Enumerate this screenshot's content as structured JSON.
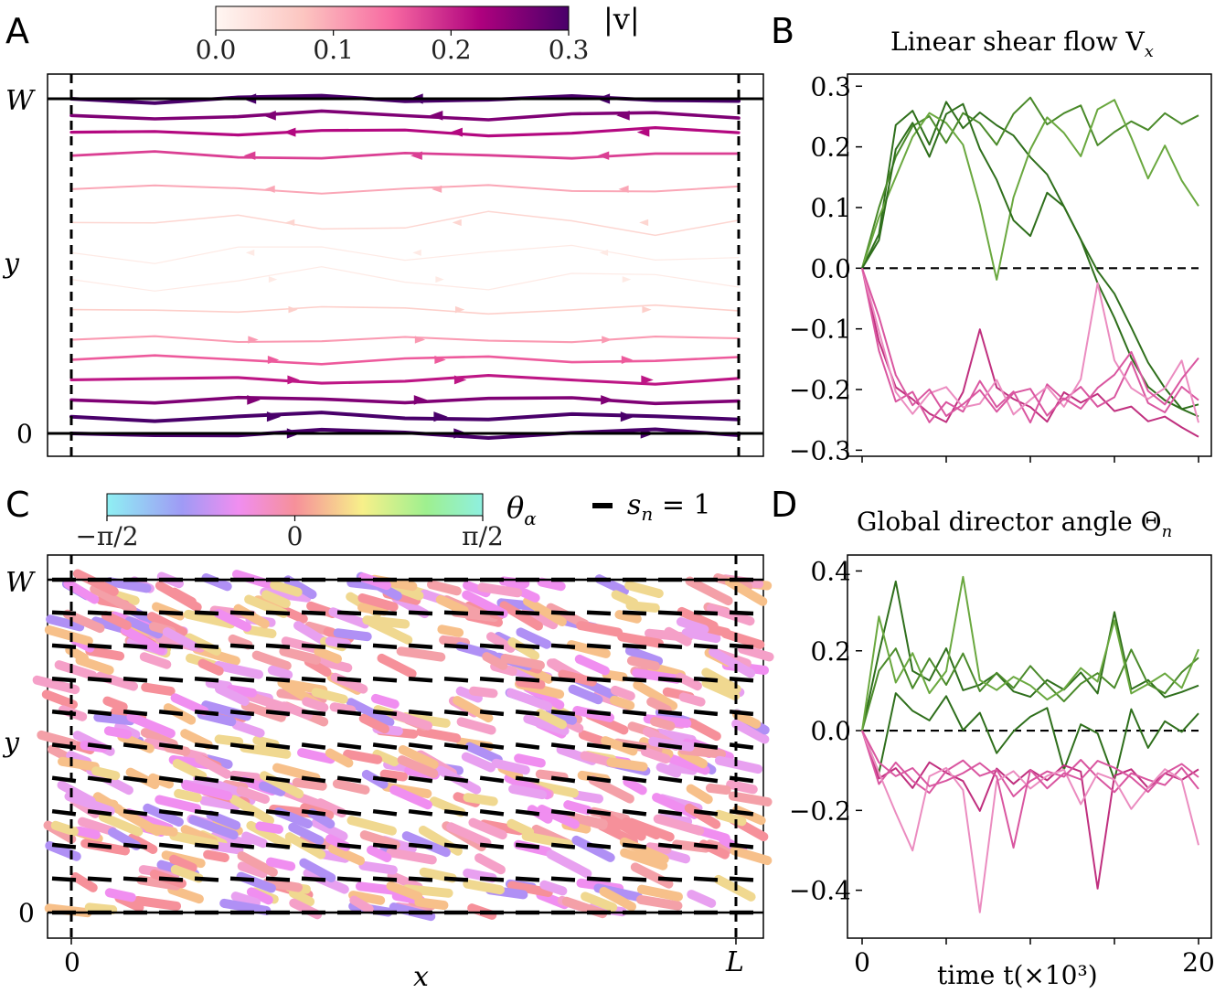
{
  "panels": {
    "A": {
      "letter": "A"
    },
    "B": {
      "letter": "B"
    },
    "C": {
      "letter": "C"
    },
    "D": {
      "letter": "D"
    }
  },
  "colors": {
    "green_dark": "#2f6f1c",
    "green_mid": "#4a8a2a",
    "green_light": "#6aa83f",
    "pink_dark": "#c0307f",
    "pink_mid": "#d956a0",
    "pink_light": "#eb8cc0",
    "rdpu_low": "#fff7f3",
    "rdpu_high": "#49006a"
  },
  "icons": [
    "flow-arrow-icon",
    "director-segment-icon"
  ],
  "chart_data": [
    {
      "id": "A",
      "type": "streamplot",
      "colorbar": {
        "label": "|v|",
        "ticks": [
          "0.0",
          "0.1",
          "0.2",
          "0.3"
        ],
        "range": [
          0,
          0.3
        ],
        "colormap": "RdPu"
      },
      "ylabel": "y",
      "yticks": [
        "0",
        "W"
      ],
      "streamlines_y": [
        1.0,
        0.95,
        0.9,
        0.83,
        0.73,
        0.63,
        0.54,
        0.46,
        0.37,
        0.28,
        0.22,
        0.16,
        0.1,
        0.05,
        0.0
      ],
      "speed_by_line": [
        0.3,
        0.26,
        0.22,
        0.18,
        0.1,
        0.05,
        0.02,
        0.02,
        0.06,
        0.11,
        0.16,
        0.21,
        0.26,
        0.3,
        0.3
      ],
      "direction_by_line": [
        -1,
        -1,
        -1,
        -1,
        -1,
        -1,
        -1,
        1,
        1,
        1,
        1,
        1,
        1,
        1,
        1
      ]
    },
    {
      "id": "B",
      "type": "line",
      "title": "Linear shear flow V",
      "title_subscript": "x",
      "xlim": [
        0,
        20
      ],
      "ylim": [
        -0.31,
        0.32
      ],
      "yticks": [
        "0.3",
        "0.2",
        "0.1",
        "0.0",
        "−0.1",
        "−0.2",
        "−0.3"
      ],
      "ytick_values": [
        0.3,
        0.2,
        0.1,
        0.0,
        -0.1,
        -0.2,
        -0.3
      ],
      "reference_line": 0.0,
      "series": [
        {
          "color": "green_dark",
          "x": [
            0,
            1,
            2,
            3,
            4,
            5,
            6,
            7,
            8,
            9,
            10,
            11,
            12,
            13,
            14,
            15,
            16,
            17,
            18,
            19,
            20
          ],
          "values": [
            0,
            0.06,
            0.24,
            0.26,
            0.2,
            0.27,
            0.23,
            0.26,
            0.24,
            0.22,
            0.18,
            0.15,
            0.1,
            0.05,
            0.0,
            -0.04,
            -0.1,
            -0.16,
            -0.2,
            -0.23,
            -0.24
          ]
        },
        {
          "color": "green_mid",
          "x": [
            0,
            1,
            2,
            3,
            4,
            5,
            6,
            7,
            8,
            9,
            10,
            11,
            12,
            13,
            14,
            15,
            16,
            17,
            18,
            19,
            20
          ],
          "values": [
            0,
            0.1,
            0.18,
            0.23,
            0.25,
            0.21,
            0.26,
            0.24,
            0.2,
            0.25,
            0.28,
            0.24,
            0.26,
            0.27,
            0.2,
            0.22,
            0.24,
            0.23,
            0.26,
            0.24,
            0.25
          ]
        },
        {
          "color": "green_light",
          "x": [
            0,
            1,
            2,
            3,
            4,
            5,
            6,
            7,
            8,
            9,
            10,
            11,
            12,
            13,
            14,
            15,
            16,
            17,
            18,
            19,
            20
          ],
          "values": [
            0,
            0.08,
            0.15,
            0.22,
            0.26,
            0.24,
            0.2,
            0.1,
            -0.02,
            0.12,
            0.2,
            0.25,
            0.22,
            0.18,
            0.26,
            0.28,
            0.22,
            0.15,
            0.2,
            0.14,
            0.1
          ]
        },
        {
          "color": "green_dark",
          "x": [
            0,
            1,
            2,
            3,
            4,
            5,
            6,
            7,
            8,
            9,
            10,
            11,
            12,
            13,
            14,
            15,
            16,
            17,
            18,
            19,
            20
          ],
          "values": [
            0,
            0.05,
            0.2,
            0.24,
            0.18,
            0.25,
            0.27,
            0.2,
            0.15,
            0.08,
            0.05,
            0.12,
            0.1,
            0.05,
            -0.02,
            -0.08,
            -0.15,
            -0.2,
            -0.22,
            -0.23,
            -0.22
          ]
        },
        {
          "color": "pink_dark",
          "x": [
            0,
            1,
            2,
            3,
            4,
            5,
            6,
            7,
            8,
            9,
            10,
            11,
            12,
            13,
            14,
            15,
            16,
            17,
            18,
            19,
            20
          ],
          "values": [
            0,
            -0.12,
            -0.2,
            -0.22,
            -0.24,
            -0.25,
            -0.2,
            -0.1,
            -0.2,
            -0.22,
            -0.23,
            -0.25,
            -0.2,
            -0.22,
            -0.21,
            -0.24,
            -0.23,
            -0.25,
            -0.24,
            -0.26,
            -0.28
          ]
        },
        {
          "color": "pink_mid",
          "x": [
            0,
            1,
            2,
            3,
            4,
            5,
            6,
            7,
            8,
            9,
            10,
            11,
            12,
            13,
            14,
            15,
            16,
            17,
            18,
            19,
            20
          ],
          "values": [
            0,
            -0.14,
            -0.22,
            -0.2,
            -0.25,
            -0.22,
            -0.24,
            -0.19,
            -0.23,
            -0.2,
            -0.25,
            -0.19,
            -0.22,
            -0.2,
            -0.23,
            -0.21,
            -0.15,
            -0.22,
            -0.24,
            -0.2,
            -0.22
          ]
        },
        {
          "color": "pink_light",
          "x": [
            0,
            1,
            2,
            3,
            4,
            5,
            6,
            7,
            8,
            9,
            10,
            11,
            12,
            13,
            14,
            15,
            16,
            17,
            18,
            19,
            20
          ],
          "values": [
            0,
            -0.1,
            -0.2,
            -0.24,
            -0.21,
            -0.2,
            -0.23,
            -0.22,
            -0.18,
            -0.24,
            -0.22,
            -0.2,
            -0.23,
            -0.18,
            -0.02,
            -0.15,
            -0.2,
            -0.22,
            -0.2,
            -0.15,
            -0.25
          ]
        },
        {
          "color": "pink_mid",
          "x": [
            0,
            1,
            2,
            3,
            4,
            5,
            6,
            7,
            8,
            9,
            10,
            11,
            12,
            13,
            14,
            15,
            16,
            17,
            18,
            19,
            20
          ],
          "values": [
            0,
            -0.08,
            -0.18,
            -0.23,
            -0.2,
            -0.24,
            -0.22,
            -0.2,
            -0.24,
            -0.21,
            -0.2,
            -0.24,
            -0.21,
            -0.23,
            -0.2,
            -0.18,
            -0.14,
            -0.2,
            -0.22,
            -0.18,
            -0.15
          ]
        }
      ]
    },
    {
      "id": "C",
      "type": "director_field",
      "colorbar": {
        "label": "θ",
        "label_subscript": "α",
        "ticks": [
          "−π/2",
          "0",
          "π/2"
        ],
        "range": [
          -1.5708,
          1.5708
        ]
      },
      "legend": {
        "label": "s",
        "label_subscript": "n",
        "label_suffix": " = 1"
      },
      "xlabel": "x",
      "ylabel": "y",
      "xticks": [
        "0",
        "L"
      ],
      "yticks": [
        "0",
        "W"
      ],
      "rows_y": [
        1.0,
        0.9,
        0.8,
        0.7,
        0.6,
        0.5,
        0.4,
        0.3,
        0.2,
        0.1,
        0.0
      ],
      "director_angle_by_row": [
        0.0,
        -0.05,
        -0.07,
        -0.08,
        -0.1,
        -0.12,
        -0.13,
        -0.12,
        -0.1,
        -0.06,
        0.0
      ]
    },
    {
      "id": "D",
      "type": "line",
      "title": "Global director angle Θ",
      "title_subscript": "n",
      "xlabel": "time t(×10³)",
      "xlim": [
        0,
        20
      ],
      "ylim": [
        -0.52,
        0.44
      ],
      "xticks": [
        "0",
        "20"
      ],
      "xtick_values": [
        0,
        20
      ],
      "yticks": [
        "0.4",
        "0.2",
        "0.0",
        "−0.2",
        "−0.4"
      ],
      "ytick_values": [
        0.4,
        0.2,
        0.0,
        -0.2,
        -0.4
      ],
      "reference_line": 0.0,
      "series": [
        {
          "color": "green_dark",
          "x": [
            0,
            1,
            2,
            3,
            4,
            5,
            6,
            7,
            8,
            9,
            10,
            11,
            12,
            13,
            14,
            15,
            16,
            17,
            18,
            19,
            20
          ],
          "values": [
            0,
            0.2,
            0.38,
            0.15,
            0.12,
            0.2,
            0.1,
            0.12,
            0.15,
            0.1,
            0.08,
            0.12,
            0.1,
            0.15,
            0.1,
            0.3,
            0.1,
            0.12,
            0.08,
            0.1,
            0.12
          ]
        },
        {
          "color": "green_mid",
          "x": [
            0,
            1,
            2,
            3,
            4,
            5,
            6,
            7,
            8,
            9,
            10,
            11,
            12,
            13,
            14,
            15,
            16,
            17,
            18,
            19,
            20
          ],
          "values": [
            0,
            0.15,
            0.2,
            0.1,
            0.18,
            0.12,
            0.2,
            0.1,
            0.14,
            0.1,
            0.16,
            0.12,
            0.08,
            0.12,
            0.14,
            0.1,
            0.2,
            0.12,
            0.1,
            0.15,
            0.18
          ]
        },
        {
          "color": "green_light",
          "x": [
            0,
            1,
            2,
            3,
            4,
            5,
            6,
            7,
            8,
            9,
            10,
            11,
            12,
            13,
            14,
            15,
            16,
            17,
            18,
            19,
            20
          ],
          "values": [
            0,
            0.28,
            0.12,
            0.2,
            0.1,
            0.15,
            0.38,
            0.12,
            0.1,
            0.14,
            0.12,
            0.08,
            0.1,
            0.15,
            0.12,
            0.28,
            0.1,
            0.12,
            0.14,
            0.1,
            0.2
          ]
        },
        {
          "color": "green_dark",
          "x": [
            0,
            1,
            2,
            3,
            4,
            5,
            6,
            7,
            8,
            9,
            10,
            11,
            12,
            13,
            14,
            15,
            16,
            17,
            18,
            19,
            20
          ],
          "values": [
            0,
            -0.1,
            0.1,
            0.05,
            0.02,
            0.08,
            0.0,
            0.05,
            -0.05,
            0.0,
            0.03,
            0.05,
            -0.1,
            0.02,
            0.0,
            -0.12,
            0.05,
            -0.05,
            0.02,
            0.0,
            0.05
          ]
        },
        {
          "color": "pink_dark",
          "x": [
            0,
            1,
            2,
            3,
            4,
            5,
            6,
            7,
            8,
            9,
            10,
            11,
            12,
            13,
            14,
            15,
            16,
            17,
            18,
            19,
            20
          ],
          "values": [
            0,
            -0.12,
            -0.1,
            -0.15,
            -0.08,
            -0.1,
            -0.12,
            -0.2,
            -0.1,
            -0.14,
            -0.1,
            -0.12,
            -0.08,
            -0.1,
            -0.4,
            -0.12,
            -0.1,
            -0.14,
            -0.1,
            -0.12,
            -0.1
          ]
        },
        {
          "color": "pink_mid",
          "x": [
            0,
            1,
            2,
            3,
            4,
            5,
            6,
            7,
            8,
            9,
            10,
            11,
            12,
            13,
            14,
            15,
            16,
            17,
            18,
            19,
            20
          ],
          "values": [
            0,
            -0.14,
            -0.08,
            -0.12,
            -0.15,
            -0.1,
            -0.08,
            -0.12,
            -0.1,
            -0.16,
            -0.12,
            -0.1,
            -0.12,
            -0.08,
            -0.12,
            -0.15,
            -0.1,
            -0.12,
            -0.14,
            -0.1,
            -0.15
          ]
        },
        {
          "color": "pink_light",
          "x": [
            0,
            1,
            2,
            3,
            4,
            5,
            6,
            7,
            8,
            9,
            10,
            11,
            12,
            13,
            14,
            15,
            16,
            17,
            18,
            19,
            20
          ],
          "values": [
            0,
            -0.1,
            -0.2,
            -0.3,
            -0.12,
            -0.1,
            -0.15,
            -0.45,
            -0.12,
            -0.1,
            -0.15,
            -0.12,
            -0.1,
            -0.18,
            -0.1,
            -0.12,
            -0.2,
            -0.15,
            -0.1,
            -0.12,
            -0.28
          ]
        },
        {
          "color": "pink_mid",
          "x": [
            0,
            1,
            2,
            3,
            4,
            5,
            6,
            7,
            8,
            9,
            10,
            11,
            12,
            13,
            14,
            15,
            16,
            17,
            18,
            19,
            20
          ],
          "values": [
            0,
            -0.08,
            -0.12,
            -0.1,
            -0.14,
            -0.12,
            -0.1,
            -0.08,
            -0.12,
            -0.3,
            -0.1,
            -0.14,
            -0.1,
            -0.12,
            -0.08,
            -0.1,
            -0.12,
            -0.15,
            -0.1,
            -0.08,
            -0.12
          ]
        }
      ]
    }
  ]
}
